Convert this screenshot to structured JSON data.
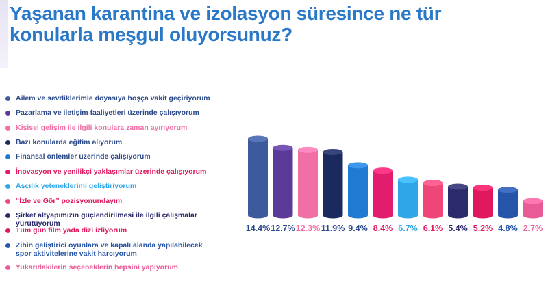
{
  "title_line1": "Yaşanan karantina ve izolasyon süresince ne tür",
  "title_line2": "konularla meşgul oluyorsunuz?",
  "chart_data": {
    "type": "bar",
    "categories": [
      "Ailem ve sevdiklerimle doyasıya hoşça vakit geçiriyorum",
      "Pazarlama ve iletişim faaliyetleri üzerinde çalışıyorum",
      "Kişisel gelişim ile ilgili konulara zaman ayırıyorum",
      "Bazı konularda eğitim alıyorum",
      "Finansal önlemler üzerinde çalışıyorum",
      "İnovasyon ve yenilikçi yaklaşımlar üzerinde çalışıyorum",
      "Aşçılık yeteneklerimi geliştiriyorum",
      "“İzle ve Gör” pozisyonundayım",
      "Şirket altyapımızın güçlendirilmesi ile ilgili  çalışmalar yürütüyorum",
      "Tüm gün film yada dizi izliyorum",
      "Zihin geliştirici oyunlara ve kapalı alanda yapılabilecek spor aktivitelerine vakit harcıyorum",
      "Yukarıdakilerin seçeneklerin hepsini yapıyorum"
    ],
    "values": [
      14.4,
      12.7,
      12.3,
      11.9,
      9.4,
      8.4,
      6.7,
      6.1,
      5.4,
      5.2,
      4.8,
      2.7
    ],
    "value_labels": [
      "14.4%",
      "12.7%",
      "12.3%",
      "11.9%",
      "9.4%",
      "8.4%",
      "6.7%",
      "6.1%",
      "5.4%",
      "5.2%",
      "4.8%",
      "2.7%"
    ],
    "colors": [
      "#3d5a9c",
      "#5b3a9a",
      "#f06fa5",
      "#1a2a5e",
      "#1f7bd1",
      "#e31d6e",
      "#2ea6e8",
      "#ee4777",
      "#2b2a6b",
      "#e0185f",
      "#2554a8",
      "#e95b97"
    ],
    "value_label_colors": [
      "#2b4a8a",
      "#2b4a8a",
      "#f06fa5",
      "#2b4a8a",
      "#2b4a8a",
      "#e0185f",
      "#2ea6e8",
      "#e0185f",
      "#2b2a6b",
      "#e0185f",
      "#2554a8",
      "#e95b97"
    ],
    "legend_placement": "left",
    "grid": false
  }
}
